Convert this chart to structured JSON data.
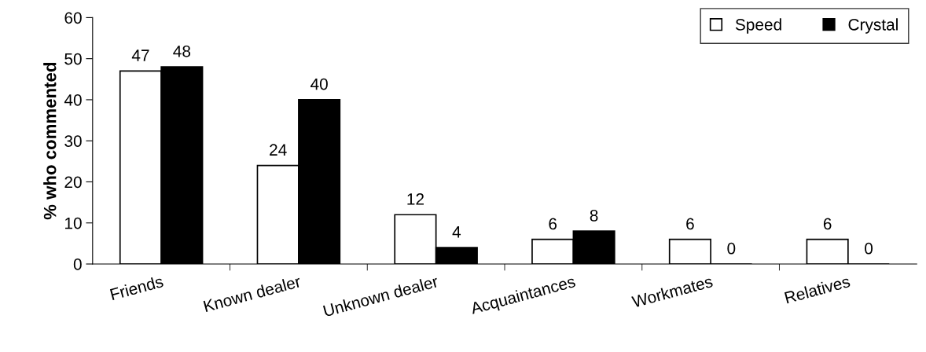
{
  "chart_data": {
    "type": "bar",
    "ylabel": "% who commented",
    "categories": [
      "Friends",
      "Known dealer",
      "Unknown dealer",
      "Acquaintances",
      "Workmates",
      "Relatives"
    ],
    "series": [
      {
        "name": "Speed",
        "color": "#ffffff",
        "values": [
          47,
          24,
          12,
          6,
          6,
          6
        ]
      },
      {
        "name": "Crystal",
        "color": "#000000",
        "values": [
          48,
          40,
          4,
          8,
          0,
          0
        ]
      }
    ],
    "ylim": [
      0,
      60
    ],
    "yticks": [
      0,
      10,
      20,
      30,
      40,
      50,
      60
    ],
    "data_labels": true,
    "legend": "top right",
    "grid": false
  }
}
